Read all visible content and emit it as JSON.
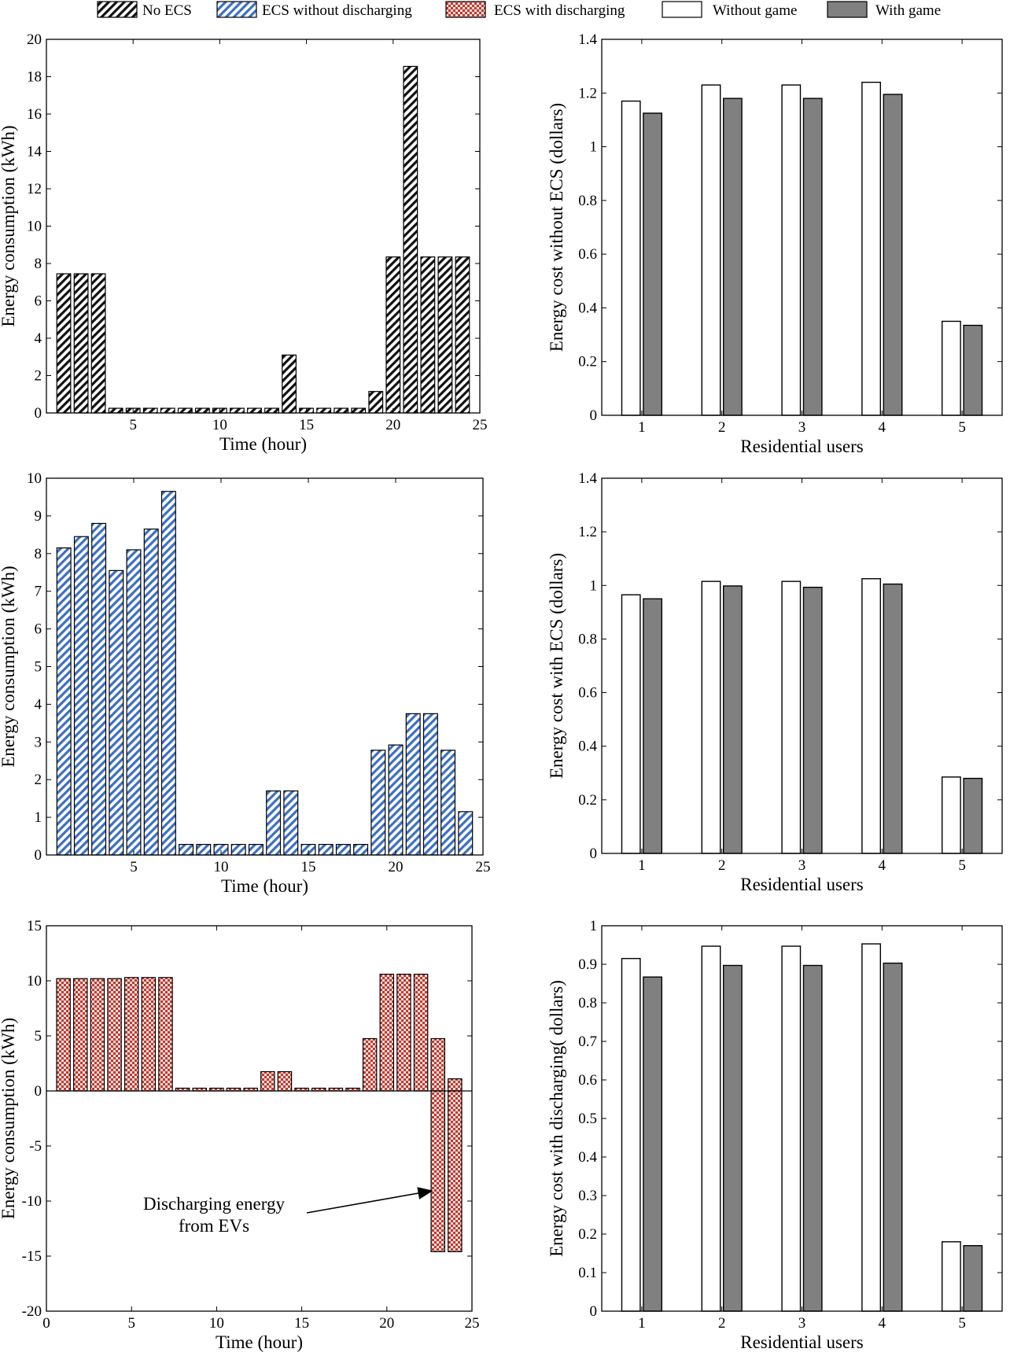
{
  "legend": {
    "items": [
      {
        "label": "No ECS",
        "pattern": "stripe-black"
      },
      {
        "label": "ECS without discharging",
        "pattern": "stripe-blue"
      },
      {
        "label": "ECS with discharging",
        "pattern": "check-red"
      },
      {
        "label": "Without game",
        "pattern": "white"
      },
      {
        "label": "With  game",
        "pattern": "gray"
      }
    ]
  },
  "colors": {
    "stripe_black": "#111111",
    "stripe_blue": "#3b6fc2",
    "check_red": "#c0392b",
    "gray_bar": "#808080",
    "white_bar": "#ffffff"
  },
  "annotation": {
    "line1": "Discharging energy",
    "line2": "from EVs"
  },
  "chart_data": [
    {
      "id": "c1",
      "type": "bar",
      "pattern": "stripe-black",
      "title": "",
      "xlabel": "Time  (hour)",
      "ylabel": "Energy  consumption (kWh)",
      "xlim": [
        0,
        25
      ],
      "ylim": [
        0,
        20
      ],
      "xticks": [
        5,
        10,
        15,
        20,
        25
      ],
      "yticks": [
        0,
        2,
        4,
        6,
        8,
        10,
        12,
        14,
        16,
        18,
        20
      ],
      "x": [
        1,
        2,
        3,
        4,
        5,
        6,
        7,
        8,
        9,
        10,
        11,
        12,
        13,
        14,
        15,
        16,
        17,
        18,
        19,
        20,
        21,
        22,
        23,
        24
      ],
      "values": [
        7.45,
        7.45,
        7.45,
        0.25,
        0.25,
        0.25,
        0.25,
        0.25,
        0.25,
        0.25,
        0.25,
        0.25,
        0.25,
        3.1,
        0.25,
        0.25,
        0.25,
        0.25,
        1.15,
        8.35,
        18.55,
        8.35,
        8.35,
        8.35
      ]
    },
    {
      "id": "c2",
      "type": "bar",
      "pattern": "white-gray",
      "title": "",
      "xlabel": "Residential users",
      "ylabel": "Energy cost  without ECS (dollars)",
      "xlim": [
        0.5,
        5.5
      ],
      "ylim": [
        0,
        1.4
      ],
      "xticks": [
        1,
        2,
        3,
        4,
        5
      ],
      "yticks": [
        0,
        0.2,
        0.4,
        0.6,
        0.8,
        1,
        1.2,
        1.4
      ],
      "categories": [
        "1",
        "2",
        "3",
        "4",
        "5"
      ],
      "series": [
        {
          "name": "Without game",
          "values": [
            1.17,
            1.23,
            1.23,
            1.24,
            0.35
          ]
        },
        {
          "name": "With  game",
          "values": [
            1.125,
            1.18,
            1.18,
            1.195,
            0.335
          ]
        }
      ]
    },
    {
      "id": "c3",
      "type": "bar",
      "pattern": "stripe-blue",
      "title": "",
      "xlabel": "Time  (hour)",
      "ylabel": "Energy consumption (kWh)",
      "xlim": [
        0,
        25
      ],
      "ylim": [
        0,
        10
      ],
      "xticks": [
        5,
        10,
        15,
        20,
        25
      ],
      "yticks": [
        0,
        1,
        2,
        3,
        4,
        5,
        6,
        7,
        8,
        9,
        10
      ],
      "x": [
        1,
        2,
        3,
        4,
        5,
        6,
        7,
        8,
        9,
        10,
        11,
        12,
        13,
        14,
        15,
        16,
        17,
        18,
        19,
        20,
        21,
        22,
        23,
        24
      ],
      "values": [
        8.15,
        8.45,
        8.8,
        7.55,
        8.1,
        8.65,
        9.65,
        0.28,
        0.28,
        0.28,
        0.28,
        0.28,
        1.7,
        1.7,
        0.28,
        0.28,
        0.28,
        0.28,
        2.78,
        2.92,
        3.75,
        3.75,
        2.78,
        1.15
      ]
    },
    {
      "id": "c4",
      "type": "bar",
      "pattern": "white-gray",
      "title": "",
      "xlabel": "Residential users",
      "ylabel": "Energy cost  with ECS (dollars)",
      "xlim": [
        0.5,
        5.5
      ],
      "ylim": [
        0,
        1.4
      ],
      "xticks": [
        1,
        2,
        3,
        4,
        5
      ],
      "yticks": [
        0,
        0.2,
        0.4,
        0.6,
        0.8,
        1,
        1.2,
        1.4
      ],
      "categories": [
        "1",
        "2",
        "3",
        "4",
        "5"
      ],
      "series": [
        {
          "name": "Without game",
          "values": [
            0.965,
            1.015,
            1.015,
            1.025,
            0.285
          ]
        },
        {
          "name": "With  game",
          "values": [
            0.95,
            0.998,
            0.993,
            1.005,
            0.28
          ]
        }
      ]
    },
    {
      "id": "c5",
      "type": "bar",
      "pattern": "check-red",
      "title": "",
      "xlabel": "Time  (hour)",
      "ylabel": "Energy consumption (kWh)",
      "xlim": [
        0,
        25
      ],
      "ylim": [
        -20,
        15
      ],
      "xticks": [
        0,
        5,
        10,
        15,
        20,
        25
      ],
      "yticks": [
        -20,
        -15,
        -10,
        -5,
        0,
        5,
        10,
        15
      ],
      "x": [
        1,
        2,
        3,
        4,
        5,
        6,
        7,
        8,
        9,
        10,
        11,
        12,
        13,
        14,
        15,
        16,
        17,
        18,
        19,
        20,
        21,
        22,
        23,
        24
      ],
      "values": [
        10.2,
        10.2,
        10.2,
        10.2,
        10.3,
        10.3,
        10.3,
        0.25,
        0.25,
        0.25,
        0.25,
        0.25,
        1.75,
        1.75,
        0.25,
        0.25,
        0.25,
        0.25,
        4.75,
        10.6,
        10.6,
        10.6,
        4.75,
        1.1
      ],
      "negative_values": [
        0,
        0,
        0,
        0,
        0,
        0,
        0,
        0,
        0,
        0,
        0,
        0,
        0,
        0,
        0,
        0,
        0,
        0,
        0,
        0,
        0,
        0,
        -14.6,
        -14.6
      ]
    },
    {
      "id": "c6",
      "type": "bar",
      "pattern": "white-gray",
      "title": "",
      "xlabel": "Residential users",
      "ylabel": "Energy cost with discharging( dollars)",
      "xlim": [
        0.5,
        5.5
      ],
      "ylim": [
        0,
        1
      ],
      "xticks": [
        1,
        2,
        3,
        4,
        5
      ],
      "yticks": [
        0,
        0.1,
        0.2,
        0.3,
        0.4,
        0.5,
        0.6,
        0.7,
        0.8,
        0.9,
        1
      ],
      "categories": [
        "1",
        "2",
        "3",
        "4",
        "5"
      ],
      "series": [
        {
          "name": "Without game",
          "values": [
            0.915,
            0.947,
            0.947,
            0.953,
            0.18
          ]
        },
        {
          "name": "With  game",
          "values": [
            0.867,
            0.897,
            0.897,
            0.903,
            0.17
          ]
        }
      ]
    }
  ]
}
